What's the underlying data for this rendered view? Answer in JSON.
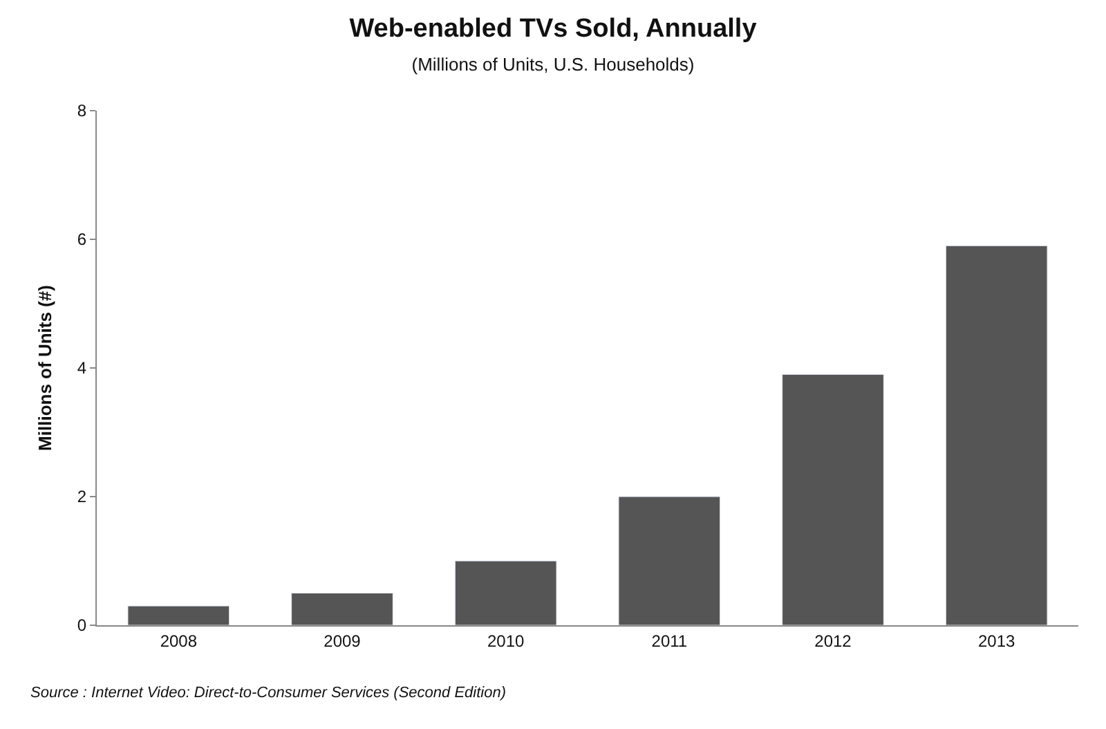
{
  "chart_data": {
    "type": "bar",
    "title": "Web-enabled TVs Sold, Annually",
    "subtitle": "(Millions of Units, U.S. Households)",
    "ylabel": "Millions of Units (#)",
    "categories": [
      "2008",
      "2009",
      "2010",
      "2011",
      "2012",
      "2013"
    ],
    "values": [
      0.3,
      0.5,
      1.0,
      2.0,
      3.9,
      5.9
    ],
    "color": "#555555",
    "ylim": [
      0,
      8
    ],
    "yticks": [
      0,
      2,
      4,
      6,
      8
    ],
    "annotations": [
      "Source : Internet Video: Direct-to-Consumer Services (Second Edition)"
    ]
  }
}
